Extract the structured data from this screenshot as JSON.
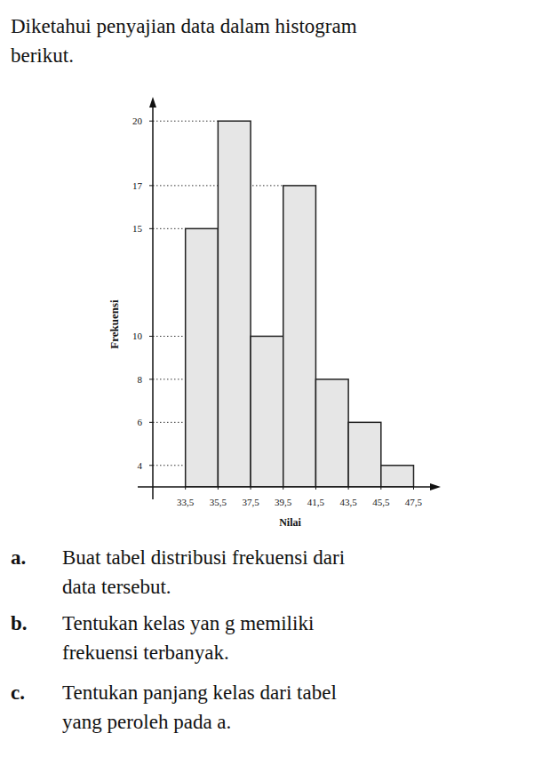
{
  "intro": [
    "Diketahui penyajian data dalam histogram",
    "berikut."
  ],
  "chart_data": {
    "type": "histogram",
    "x_label": "Nilai",
    "y_label": "Frekuensi",
    "bins": [
      33.5,
      35.5,
      37.5,
      39.5,
      41.5,
      43.5,
      45.5,
      47.5
    ],
    "values": [
      15,
      20,
      10,
      17,
      8,
      6,
      4
    ],
    "color": "#e6e6e6",
    "xlim": [
      31.5,
      49
    ],
    "ylim": [
      3,
      21
    ],
    "xticks": [
      {
        "value": 33.5,
        "label": "33,5"
      },
      {
        "value": 35.5,
        "label": "35,5"
      },
      {
        "value": 37.5,
        "label": "37,5"
      },
      {
        "value": 39.5,
        "label": "39,5"
      },
      {
        "value": 41.5,
        "label": "41,5"
      },
      {
        "value": 43.5,
        "label": "43,5"
      },
      {
        "value": 45.5,
        "label": "45,5"
      },
      {
        "value": 47.5,
        "label": "47,5"
      }
    ],
    "yticks": [
      4,
      6,
      8,
      10,
      15,
      17,
      20
    ],
    "grid": true
  },
  "questions": [
    {
      "label": "a.",
      "lines": [
        "Buat tabel distribusi frekuensi dari",
        "data tersebut."
      ]
    },
    {
      "label": "b.",
      "lines": [
        "Tentukan kelas yan g memiliki",
        "frekuensi terbanyak."
      ]
    },
    {
      "label": "c.",
      "lines": [
        "Tentukan panjang kelas dari tabel",
        "yang peroleh pada a."
      ]
    }
  ]
}
